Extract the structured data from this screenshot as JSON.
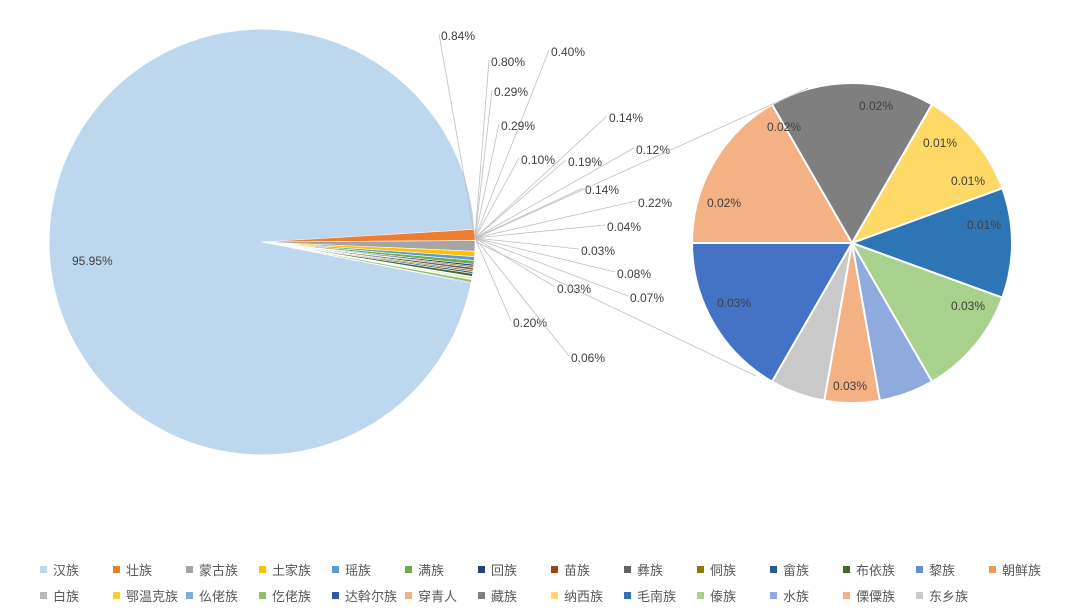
{
  "chart_data": {
    "type": "bar-of-pie",
    "main_pie": {
      "slices": [
        {
          "name": "汉族",
          "value": 95.95,
          "label": "95.95%",
          "color": "#BDD7EE"
        },
        {
          "name": "壮族",
          "value": 0.84,
          "label": "0.84%",
          "color": "#ED7D31"
        },
        {
          "name": "蒙古族",
          "value": 0.8,
          "label": "0.80%",
          "color": "#A5A5A5"
        },
        {
          "name": "土家族",
          "value": 0.4,
          "label": "0.40%",
          "color": "#FFC000"
        },
        {
          "name": "瑶族",
          "value": 0.29,
          "label": "0.29%",
          "color": "#5B9BD5"
        },
        {
          "name": "满族",
          "value": 0.29,
          "label": "0.29%",
          "color": "#70AD47"
        },
        {
          "name": "回族",
          "value": 0.14,
          "label": "0.14%",
          "color": "#264478"
        },
        {
          "name": "苗族",
          "value": 0.1,
          "label": "0.10%",
          "color": "#9E480E"
        },
        {
          "name": "彝族",
          "value": 0.19,
          "label": "0.19%",
          "color": "#636363"
        },
        {
          "name": "侗族",
          "value": 0.12,
          "label": "0.12%",
          "color": "#997300"
        },
        {
          "name": "畲族",
          "value": 0.14,
          "label": "0.14%",
          "color": "#255E91"
        },
        {
          "name": "布依族",
          "value": 0.22,
          "label": "0.22%",
          "color": "#43682B"
        },
        {
          "name": "黎族",
          "value": 0.04,
          "label": "0.04%",
          "color": "#698ED0"
        },
        {
          "name": "朝鲜族",
          "value": 0.03,
          "label": "0.03%",
          "color": "#F1975A"
        },
        {
          "name": "白族",
          "value": 0.08,
          "label": "0.08%",
          "color": "#B7B7B7"
        },
        {
          "name": "鄂温克族",
          "value": 0.07,
          "label": "0.07%",
          "color": "#FFCD33"
        },
        {
          "name": "仫佬族",
          "value": 0.03,
          "label": "0.03%",
          "color": "#7CAFDD"
        },
        {
          "name": "仡佬族",
          "value": 0.2,
          "label": "0.20%",
          "color": "#8CC168"
        },
        {
          "name": "达斡尔族",
          "value": 0.06,
          "label": "0.06%",
          "color": "#335AA1"
        }
      ]
    },
    "secondary_pie": {
      "slices": [
        {
          "name": "穿青人",
          "value": 0.03,
          "label": "0.03%",
          "color": "#F4B183"
        },
        {
          "name": "藏族",
          "value": 0.03,
          "label": "0.03%",
          "color": "#7F7F7F"
        },
        {
          "name": "纳西族",
          "value": 0.02,
          "label": "0.02%",
          "color": "#FFD966"
        },
        {
          "name": "毛南族",
          "value": 0.02,
          "label": "0.02%",
          "color": "#2E75B6"
        },
        {
          "name": "傣族",
          "value": 0.02,
          "label": "0.02%",
          "color": "#A9D18E"
        },
        {
          "name": "水族",
          "value": 0.01,
          "label": "0.01%",
          "color": "#8FAADC"
        },
        {
          "name": "傈僳族",
          "value": 0.01,
          "label": "0.01%",
          "color": "#F4B183"
        },
        {
          "name": "东乡族",
          "value": 0.01,
          "label": "0.01%",
          "color": "#C9C9C9"
        },
        {
          "name": "",
          "value": 0.03,
          "label": "0.03%",
          "color": "#4472C4"
        }
      ]
    },
    "legend": {
      "position": "bottom",
      "rows": [
        [
          {
            "name": "汉族",
            "color": "#BDD7EE"
          },
          {
            "name": "壮族",
            "color": "#ED7D31"
          },
          {
            "name": "蒙古族",
            "color": "#A5A5A5"
          },
          {
            "name": "土家族",
            "color": "#FFC000"
          },
          {
            "name": "瑶族",
            "color": "#5B9BD5"
          },
          {
            "name": "满族",
            "color": "#70AD47"
          },
          {
            "name": "回族",
            "color": "#264478"
          },
          {
            "name": "苗族",
            "color": "#9E480E"
          },
          {
            "name": "彝族",
            "color": "#636363"
          },
          {
            "name": "侗族",
            "color": "#997300"
          },
          {
            "name": "畲族",
            "color": "#255E91"
          },
          {
            "name": "布依族",
            "color": "#43682B"
          },
          {
            "name": "黎族",
            "color": "#698ED0"
          },
          {
            "name": "朝鲜族",
            "color": "#F1975A"
          }
        ],
        [
          {
            "name": "白族",
            "color": "#B7B7B7"
          },
          {
            "name": "鄂温克族",
            "color": "#FFCD33"
          },
          {
            "name": "仫佬族",
            "color": "#7CAFDD"
          },
          {
            "name": "仡佬族",
            "color": "#8CC168"
          },
          {
            "name": "达斡尔族",
            "color": "#335AA1"
          },
          {
            "name": "穿青人",
            "color": "#F4B183"
          },
          {
            "name": "藏族",
            "color": "#7F7F7F"
          },
          {
            "name": "纳西族",
            "color": "#FFD966"
          },
          {
            "name": "毛南族",
            "color": "#2E75B6"
          },
          {
            "name": "傣族",
            "color": "#A9D18E"
          },
          {
            "name": "水族",
            "color": "#8FAADC"
          },
          {
            "name": "傈僳族",
            "color": "#F4B183"
          },
          {
            "name": "东乡族",
            "color": "#C9C9C9"
          }
        ]
      ]
    }
  }
}
